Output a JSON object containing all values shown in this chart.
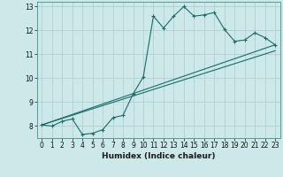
{
  "xlabel": "Humidex (Indice chaleur)",
  "xlim": [
    -0.5,
    23.5
  ],
  "ylim": [
    7.5,
    13.2
  ],
  "yticks": [
    8,
    9,
    10,
    11,
    12,
    13
  ],
  "xticks": [
    0,
    1,
    2,
    3,
    4,
    5,
    6,
    7,
    8,
    9,
    10,
    11,
    12,
    13,
    14,
    15,
    16,
    17,
    18,
    19,
    20,
    21,
    22,
    23
  ],
  "bg_color": "#cce8e8",
  "grid_color": "#b0d0d0",
  "line_color": "#1a6b6b",
  "line1_x": [
    0,
    1,
    2,
    3,
    4,
    5,
    6,
    7,
    8,
    9,
    10,
    11,
    12,
    13,
    14,
    15,
    16,
    17,
    18,
    19,
    20,
    21,
    22,
    23
  ],
  "line1_y": [
    8.05,
    8.0,
    8.2,
    8.3,
    7.65,
    7.7,
    7.85,
    8.35,
    8.45,
    9.35,
    10.05,
    12.6,
    12.1,
    12.6,
    13.0,
    12.6,
    12.65,
    12.75,
    12.05,
    11.55,
    11.6,
    11.9,
    11.7,
    11.4
  ],
  "line2_x": [
    0,
    23
  ],
  "line2_y": [
    8.05,
    11.4
  ],
  "line3_x": [
    0,
    23
  ],
  "line3_y": [
    8.05,
    11.15
  ],
  "tick_fontsize": 5.5,
  "xlabel_fontsize": 6.5,
  "spine_color": "#5a9a9a"
}
